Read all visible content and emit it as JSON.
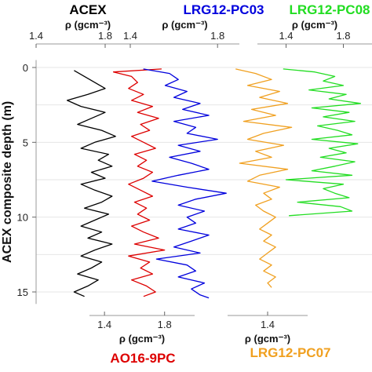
{
  "chart_data": {
    "type": "line",
    "ylabel": "ACEX composite depth (m)",
    "ylim": [
      -0.5,
      15.8
    ],
    "yticks": [
      0,
      5,
      10,
      15
    ],
    "grid": true,
    "panels": [
      {
        "name": "ACEX",
        "color": "#000000",
        "axis": "top",
        "xlabel": "ρ (gcm⁻³)",
        "xlim": [
          1.4,
          2.0
        ],
        "xticks": [
          1.4,
          1.8
        ],
        "depth": [
          0.2,
          0.6,
          1.0,
          1.4,
          1.8,
          2.2,
          2.6,
          3.0,
          3.4,
          3.8,
          4.2,
          4.6,
          5.0,
          5.4,
          5.8,
          6.2,
          6.6,
          7.0,
          7.4,
          7.8,
          8.2,
          8.6,
          9.0,
          9.4,
          9.8,
          10.2,
          10.6,
          11.0,
          11.4,
          11.8,
          12.2,
          12.6,
          13.0,
          13.4,
          13.8,
          14.2,
          14.6,
          15.0,
          15.3
        ],
        "density": [
          1.62,
          1.68,
          1.74,
          1.8,
          1.7,
          1.58,
          1.66,
          1.8,
          1.72,
          1.64,
          1.78,
          1.86,
          1.74,
          1.66,
          1.82,
          1.76,
          1.84,
          1.72,
          1.8,
          1.66,
          1.74,
          1.84,
          1.78,
          1.68,
          1.82,
          1.74,
          1.66,
          1.78,
          1.7,
          1.84,
          1.74,
          1.66,
          1.78,
          1.72,
          1.64,
          1.76,
          1.7,
          1.62,
          1.68
        ]
      },
      {
        "name": "AO16-9PC",
        "color": "#dd0000",
        "axis": "bottom",
        "xlabel": "ρ (gcm⁻³)",
        "xlim": [
          1.3,
          2.0
        ],
        "xticks": [
          1.4,
          1.8
        ],
        "depth": [
          0.1,
          0.3,
          0.6,
          1.0,
          1.4,
          1.8,
          2.2,
          2.6,
          3.0,
          3.4,
          3.8,
          4.2,
          4.6,
          5.0,
          5.4,
          5.8,
          6.2,
          6.6,
          7.0,
          7.4,
          7.8,
          8.2,
          8.6,
          9.0,
          9.4,
          9.8,
          10.2,
          10.6,
          11.0,
          11.4,
          11.8,
          12.2,
          12.6,
          13.0,
          13.4,
          13.8,
          14.2,
          14.6,
          15.0,
          15.3
        ],
        "density": [
          1.78,
          1.46,
          1.58,
          1.62,
          1.56,
          1.66,
          1.58,
          1.72,
          1.62,
          1.76,
          1.64,
          1.7,
          1.58,
          1.66,
          1.74,
          1.6,
          1.68,
          1.62,
          1.72,
          1.66,
          1.56,
          1.64,
          1.72,
          1.6,
          1.68,
          1.62,
          1.7,
          1.58,
          1.66,
          1.76,
          1.6,
          1.8,
          1.56,
          1.7,
          1.64,
          1.72,
          1.58,
          1.68,
          1.74,
          1.66
        ]
      },
      {
        "name": "LRG12-PC03",
        "color": "#0000dd",
        "axis": "top",
        "xlabel": "ρ (gcm⁻³)",
        "xlim": [
          1.4,
          1.9
        ],
        "xticks": [
          1.4,
          1.8
        ],
        "depth": [
          0.1,
          0.4,
          0.8,
          1.2,
          1.6,
          2.0,
          2.4,
          2.8,
          3.2,
          3.6,
          4.0,
          4.4,
          4.8,
          5.2,
          5.6,
          6.0,
          6.4,
          6.8,
          7.2,
          7.6,
          8.0,
          8.4,
          8.8,
          9.2,
          9.6,
          10.0,
          10.4,
          10.8,
          11.2,
          11.6,
          12.0,
          12.4,
          12.8,
          13.2,
          13.6,
          14.0,
          14.4,
          14.8,
          15.2,
          15.4
        ],
        "density": [
          1.46,
          1.58,
          1.62,
          1.56,
          1.66,
          1.6,
          1.72,
          1.64,
          1.76,
          1.6,
          1.7,
          1.66,
          1.8,
          1.62,
          1.72,
          1.58,
          1.68,
          1.76,
          1.62,
          1.5,
          1.66,
          1.84,
          1.7,
          1.62,
          1.74,
          1.66,
          1.7,
          1.62,
          1.76,
          1.68,
          1.6,
          1.72,
          1.52,
          1.66,
          1.7,
          1.62,
          1.74,
          1.68,
          1.72,
          1.76
        ]
      },
      {
        "name": "LRG12-PC07",
        "color": "#f0a020",
        "axis": "bottom",
        "xlabel": "ρ (gcm⁻³)",
        "xlim": [
          1.2,
          1.6
        ],
        "xticks": [
          1.4
        ],
        "depth": [
          0.1,
          0.4,
          0.8,
          1.2,
          1.6,
          2.0,
          2.4,
          2.8,
          3.2,
          3.6,
          4.0,
          4.4,
          4.8,
          5.2,
          5.6,
          6.0,
          6.4,
          6.8,
          7.2,
          7.6,
          8.0,
          8.4,
          8.8,
          9.2,
          9.6,
          10.0,
          10.4,
          10.8,
          11.2,
          11.6,
          12.0,
          12.4,
          12.8,
          13.2,
          13.6,
          14.0,
          14.4,
          14.7
        ],
        "density": [
          1.24,
          1.34,
          1.42,
          1.3,
          1.46,
          1.36,
          1.5,
          1.32,
          1.44,
          1.28,
          1.52,
          1.38,
          1.3,
          1.48,
          1.34,
          1.42,
          1.26,
          1.5,
          1.36,
          1.3,
          1.46,
          1.38,
          1.42,
          1.34,
          1.38,
          1.44,
          1.4,
          1.36,
          1.42,
          1.38,
          1.44,
          1.4,
          1.36,
          1.42,
          1.38,
          1.44,
          1.4,
          1.42
        ]
      },
      {
        "name": "LRG12-PC08",
        "color": "#22dd22",
        "axis": "top",
        "xlabel": "ρ (gcm⁻³)",
        "xlim": [
          1.2,
          2.0
        ],
        "xticks": [
          1.4,
          1.8
        ],
        "depth": [
          0.1,
          0.3,
          0.6,
          0.9,
          1.2,
          1.5,
          1.8,
          2.1,
          2.4,
          2.7,
          3.0,
          3.3,
          3.6,
          3.9,
          4.2,
          4.5,
          4.8,
          5.1,
          5.4,
          5.7,
          6.0,
          6.3,
          6.6,
          6.9,
          7.2,
          7.5,
          7.8,
          8.1,
          8.4,
          8.7,
          9.0,
          9.3,
          9.6,
          9.9
        ],
        "density": [
          1.38,
          1.6,
          1.74,
          1.66,
          1.8,
          1.56,
          1.82,
          1.7,
          1.92,
          1.58,
          1.84,
          1.66,
          1.88,
          1.62,
          1.76,
          1.86,
          1.58,
          1.9,
          1.7,
          1.82,
          1.64,
          1.88,
          1.74,
          1.58,
          1.86,
          1.4,
          1.8,
          1.66,
          1.74,
          1.84,
          1.48,
          1.78,
          1.86,
          1.42
        ]
      }
    ]
  }
}
